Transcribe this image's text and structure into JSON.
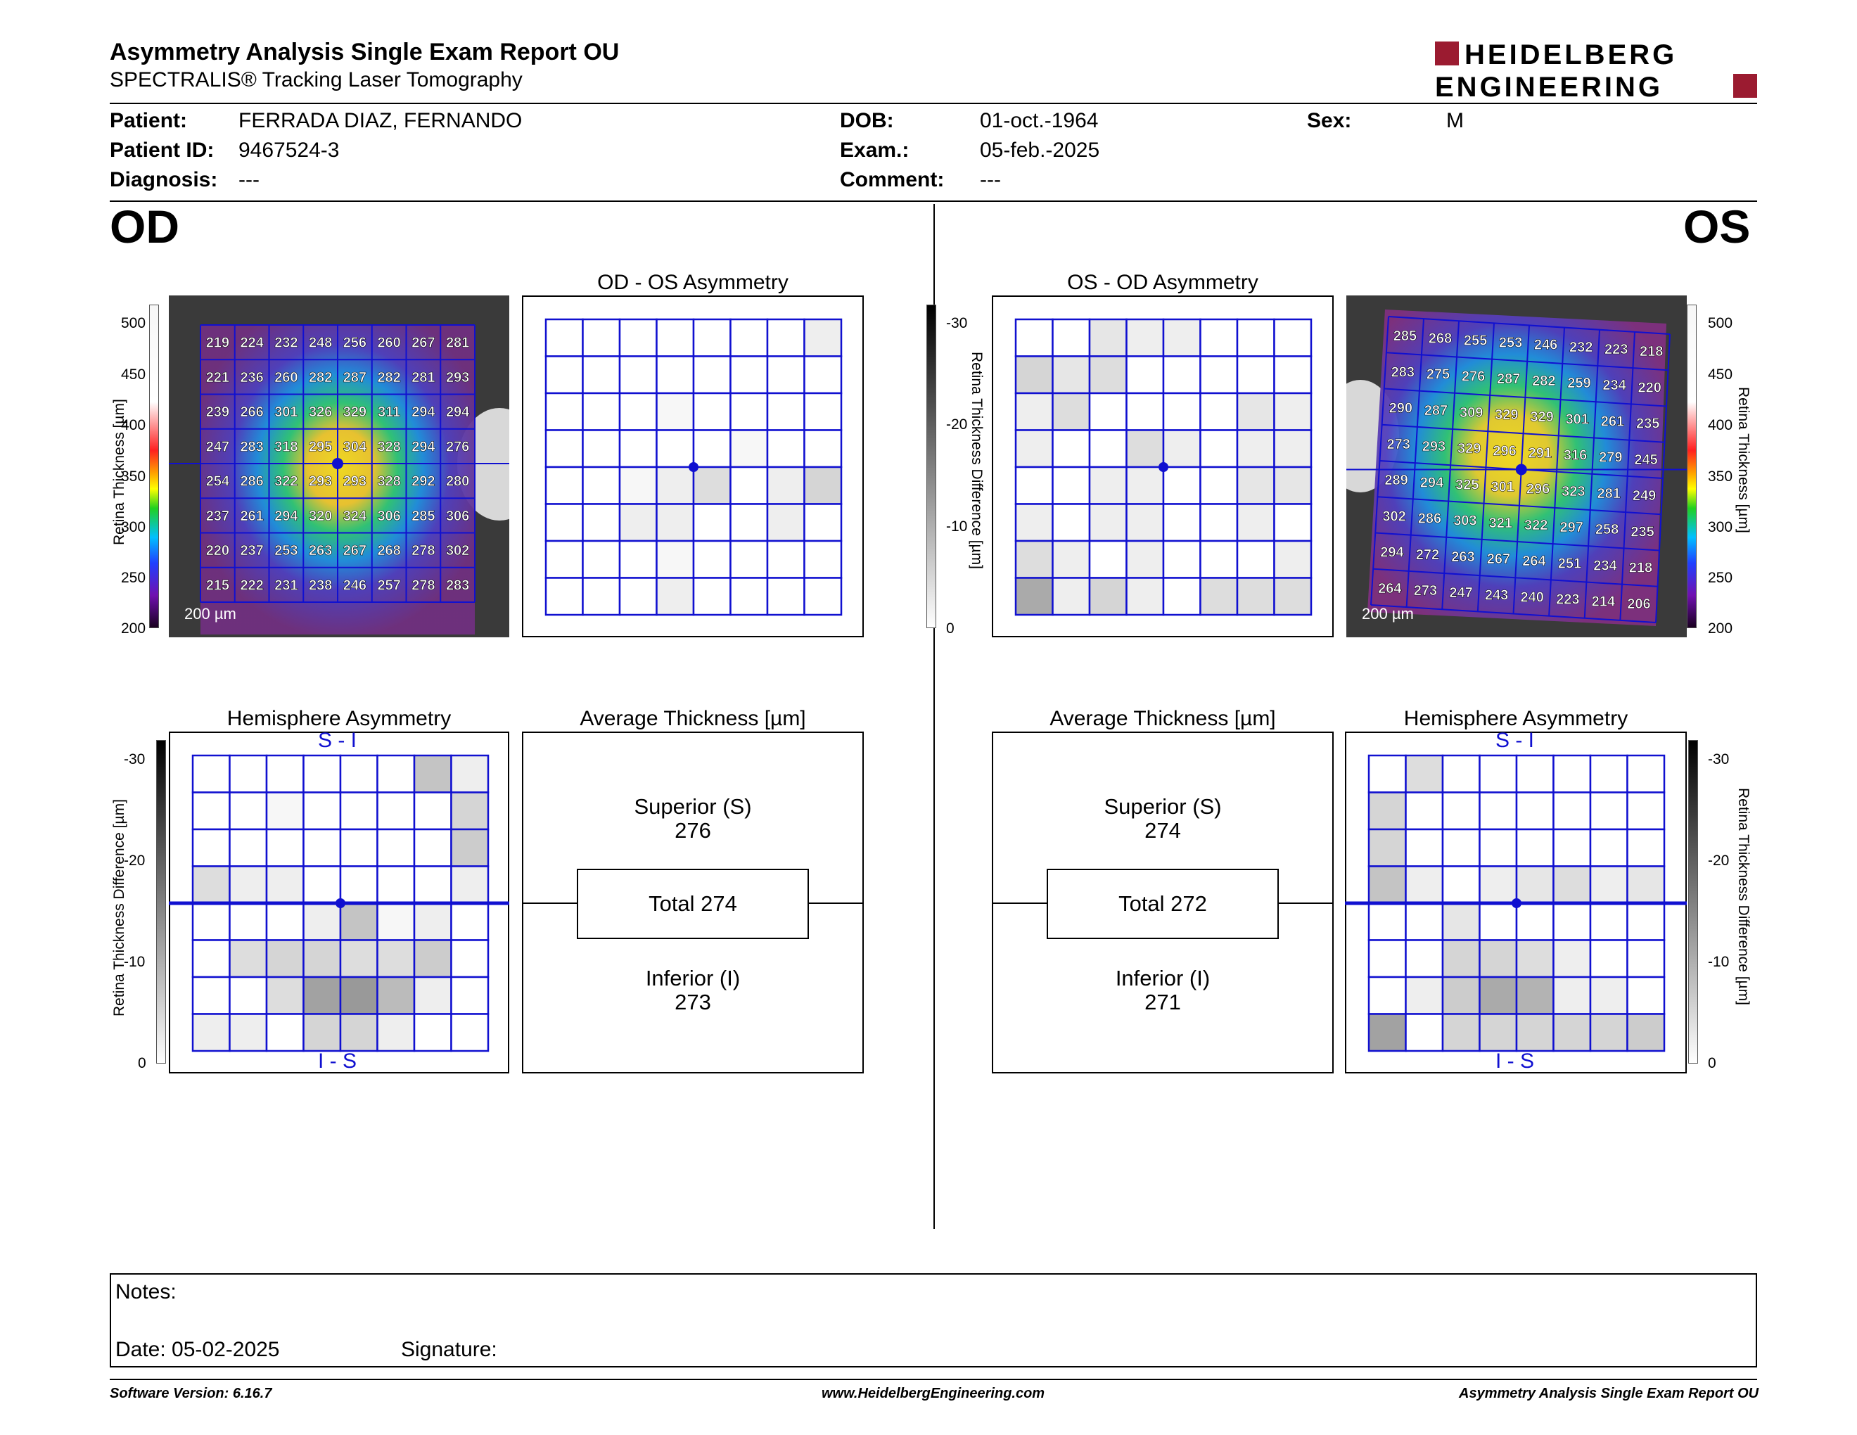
{
  "header": {
    "title": "Asymmetry Analysis Single Exam Report OU",
    "subtitle": "SPECTRALIS® Tracking Laser Tomography",
    "logo_line1": "HEIDELBERG",
    "logo_line2": "ENGINEERING",
    "brand_color": "#9b1b30"
  },
  "patient": {
    "patient_label": "Patient:",
    "patient_value": "FERRADA DIAZ, FERNANDO",
    "id_label": "Patient ID:",
    "id_value": "9467524-3",
    "diag_label": "Diagnosis:",
    "diag_value": "---",
    "dob_label": "DOB:",
    "dob_value": "01-oct.-1964",
    "exam_label": "Exam.:",
    "exam_value": "05-feb.-2025",
    "comment_label": "Comment:",
    "comment_value": "---",
    "sex_label": "Sex:",
    "sex_value": "M"
  },
  "od": {
    "eye": "OD",
    "asym_title": "OD - OS Asymmetry",
    "hemi_title": "Hemisphere Asymmetry",
    "avg_title": "Average Thickness [µm]",
    "superior_label": "Superior (S)",
    "superior_value": "276",
    "total_label": "Total 274",
    "inferior_label": "Inferior (I)",
    "inferior_value": "273",
    "si_top": "S - I",
    "si_bottom": "I - S",
    "scale_label": "200 µm",
    "thickness_grid": [
      [
        219,
        224,
        232,
        248,
        256,
        260,
        267,
        281
      ],
      [
        221,
        236,
        260,
        282,
        287,
        282,
        281,
        293
      ],
      [
        239,
        266,
        301,
        326,
        329,
        311,
        294,
        294
      ],
      [
        247,
        283,
        318,
        295,
        304,
        328,
        294,
        276
      ],
      [
        254,
        286,
        322,
        293,
        293,
        328,
        292,
        280
      ],
      [
        237,
        261,
        294,
        320,
        324,
        306,
        285,
        306
      ],
      [
        220,
        237,
        253,
        263,
        267,
        268,
        278,
        302
      ],
      [
        215,
        222,
        231,
        238,
        246,
        257,
        278,
        283
      ]
    ],
    "asym_shades": [
      [
        0,
        0,
        0,
        0,
        0,
        0,
        0,
        2
      ],
      [
        0,
        0,
        0,
        0,
        0,
        0,
        0,
        0
      ],
      [
        0,
        0,
        0,
        1,
        0,
        0,
        0,
        0
      ],
      [
        0,
        0,
        0,
        0,
        0,
        1,
        0,
        0
      ],
      [
        0,
        0,
        1,
        2,
        4,
        0,
        2,
        5
      ],
      [
        0,
        0,
        2,
        2,
        0,
        0,
        2,
        0
      ],
      [
        0,
        0,
        0,
        1,
        0,
        0,
        0,
        0
      ],
      [
        0,
        0,
        0,
        2,
        0,
        0,
        0,
        0
      ]
    ],
    "hemi_shades": [
      [
        0,
        0,
        0,
        0,
        0,
        0,
        7,
        2
      ],
      [
        0,
        0,
        1,
        0,
        0,
        0,
        0,
        5
      ],
      [
        0,
        0,
        0,
        0,
        0,
        0,
        0,
        6
      ],
      [
        4,
        2,
        2,
        0,
        0,
        0,
        0,
        2
      ],
      [
        0,
        0,
        0,
        2,
        7,
        1,
        2,
        0
      ],
      [
        0,
        4,
        5,
        5,
        4,
        4,
        6,
        0
      ],
      [
        0,
        0,
        4,
        11,
        12,
        8,
        2,
        0
      ],
      [
        2,
        2,
        0,
        5,
        5,
        2,
        0,
        0
      ]
    ]
  },
  "os": {
    "eye": "OS",
    "asym_title": "OS - OD Asymmetry",
    "hemi_title": "Hemisphere Asymmetry",
    "avg_title": "Average Thickness [µm]",
    "superior_label": "Superior (S)",
    "superior_value": "274",
    "total_label": "Total 272",
    "inferior_label": "Inferior (I)",
    "inferior_value": "271",
    "si_top": "S - I",
    "si_bottom": "I - S",
    "scale_label": "200 µm",
    "thickness_grid": [
      [
        285,
        268,
        255,
        253,
        246,
        232,
        223,
        218
      ],
      [
        283,
        275,
        276,
        287,
        282,
        259,
        234,
        220
      ],
      [
        290,
        287,
        309,
        329,
        329,
        301,
        261,
        235
      ],
      [
        273,
        293,
        329,
        296,
        291,
        316,
        279,
        245
      ],
      [
        289,
        294,
        325,
        301,
        296,
        323,
        281,
        249
      ],
      [
        302,
        286,
        303,
        321,
        322,
        297,
        258,
        235
      ],
      [
        294,
        272,
        263,
        267,
        264,
        251,
        234,
        218
      ],
      [
        264,
        273,
        247,
        243,
        240,
        223,
        214,
        206
      ]
    ],
    "asym_shades": [
      [
        0,
        0,
        3,
        2,
        2,
        0,
        0,
        0
      ],
      [
        5,
        3,
        4,
        0,
        0,
        0,
        0,
        0
      ],
      [
        2,
        4,
        0,
        0,
        0,
        0,
        3,
        2
      ],
      [
        2,
        0,
        0,
        4,
        2,
        0,
        2,
        2
      ],
      [
        0,
        0,
        2,
        2,
        0,
        0,
        3,
        3
      ],
      [
        2,
        0,
        2,
        2,
        0,
        0,
        2,
        0
      ],
      [
        4,
        2,
        0,
        2,
        0,
        0,
        0,
        2
      ],
      [
        10,
        2,
        5,
        2,
        0,
        4,
        4,
        4
      ]
    ],
    "hemi_shades": [
      [
        0,
        4,
        0,
        0,
        0,
        0,
        0,
        0
      ],
      [
        5,
        0,
        0,
        0,
        0,
        0,
        0,
        0
      ],
      [
        5,
        0,
        0,
        0,
        0,
        0,
        0,
        0
      ],
      [
        7,
        2,
        0,
        2,
        3,
        4,
        2,
        3
      ],
      [
        0,
        0,
        3,
        0,
        0,
        0,
        0,
        0
      ],
      [
        0,
        0,
        5,
        5,
        4,
        2,
        0,
        0
      ],
      [
        0,
        2,
        6,
        10,
        9,
        2,
        2,
        0
      ],
      [
        11,
        0,
        5,
        5,
        5,
        5,
        5,
        6
      ]
    ]
  },
  "colorbar_thickness": {
    "ticks": [
      "500",
      "450",
      "400",
      "350",
      "300",
      "250",
      "200"
    ],
    "title": "Retina Thickness [µm]"
  },
  "colorbar_diff": {
    "ticks": [
      "-30",
      "-20",
      "-10",
      "0"
    ],
    "title": "Retina Thickness Difference [µm]"
  },
  "notes": {
    "notes_label": "Notes:",
    "date_label": "Date: 05-02-2025",
    "signature_label": "Signature:"
  },
  "footer": {
    "software": "Software Version: 6.16.7",
    "website": "www.HeidelbergEngineering.com",
    "report": "Asymmetry Analysis Single Exam Report OU"
  },
  "colors": {
    "grid_blue": "#1010d0"
  }
}
